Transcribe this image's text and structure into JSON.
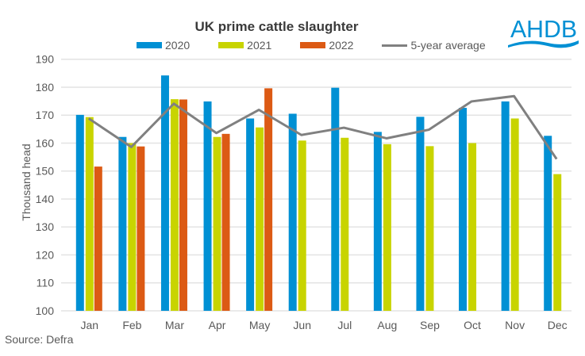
{
  "chart_data": {
    "type": "bar",
    "title": "UK prime cattle slaughter",
    "ylabel": "Thousand head",
    "xlabel": "",
    "ylim": [
      100,
      190
    ],
    "yticks": [
      100,
      110,
      120,
      130,
      140,
      150,
      160,
      170,
      180,
      190
    ],
    "grid": true,
    "legend_position": "top",
    "categories": [
      "Jan",
      "Feb",
      "Mar",
      "Apr",
      "May",
      "Jun",
      "Jul",
      "Aug",
      "Sep",
      "Oct",
      "Nov",
      "Dec"
    ],
    "series": [
      {
        "name": "2020",
        "type": "bar",
        "color": "#0090D4",
        "values": [
          170.1,
          162.2,
          184.2,
          174.9,
          168.8,
          170.5,
          179.8,
          164.0,
          169.4,
          172.6,
          174.9,
          162.6
        ]
      },
      {
        "name": "2021",
        "type": "bar",
        "color": "#C8D400",
        "values": [
          169.3,
          160.0,
          175.7,
          162.2,
          165.6,
          160.9,
          161.9,
          159.6,
          158.9,
          160.0,
          168.8,
          148.9
        ]
      },
      {
        "name": "2022",
        "type": "bar",
        "color": "#DC5A14",
        "values": [
          151.6,
          158.8,
          175.6,
          163.3,
          179.6,
          null,
          null,
          null,
          null,
          null,
          null,
          null
        ]
      },
      {
        "name": "5-year average",
        "type": "line",
        "color": "#808080",
        "values": [
          168.8,
          158.6,
          174.1,
          163.6,
          171.9,
          162.9,
          165.5,
          161.7,
          164.8,
          174.9,
          176.8,
          154.3
        ]
      }
    ]
  },
  "source": "Source: Defra",
  "logo": {
    "text": "AHDB",
    "color": "#0090D4"
  }
}
